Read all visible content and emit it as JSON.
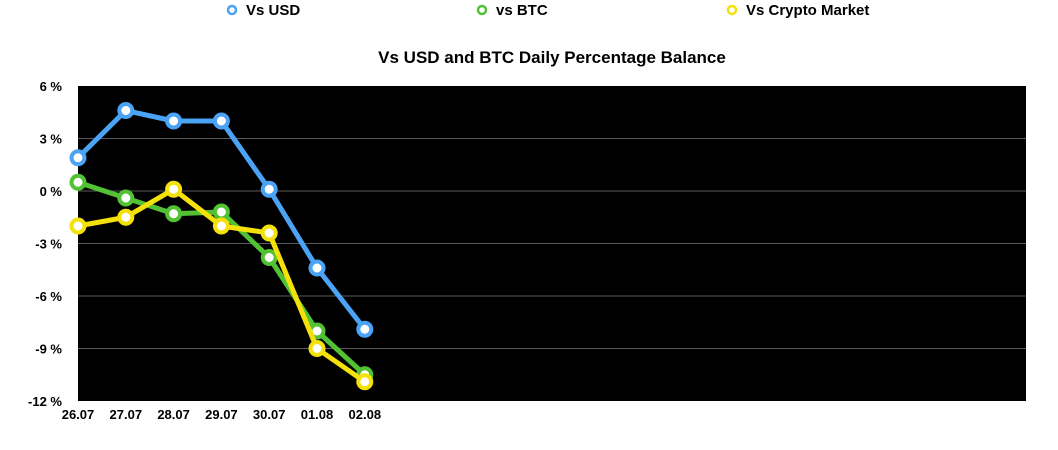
{
  "chart_data": {
    "type": "line",
    "title": "Vs USD and BTC Daily Percentage Balance",
    "xlabel": "",
    "ylabel": "",
    "categories": [
      "26.07",
      "27.07",
      "28.07",
      "29.07",
      "30.07",
      "01.08",
      "02.08"
    ],
    "ylim": [
      -12,
      6
    ],
    "yticks": [
      6,
      3,
      0,
      -3,
      -6,
      -9,
      -12
    ],
    "ytick_labels": [
      "6 %",
      "3 %",
      "0 %",
      "-3 %",
      "-6 %",
      "-9 %",
      "-12 %"
    ],
    "grid": true,
    "background": "#000000",
    "legend_position": "top",
    "series": [
      {
        "name": "Vs USD",
        "color": "#4ba3f5",
        "values": [
          1.9,
          4.6,
          4.0,
          4.0,
          0.1,
          -4.4,
          -7.9
        ]
      },
      {
        "name": "vs BTC",
        "color": "#52c234",
        "values": [
          0.5,
          -0.4,
          -1.3,
          -1.2,
          -3.8,
          -8.0,
          -10.5
        ]
      },
      {
        "name": "Vs Crypto Market",
        "color": "#f5e10a",
        "values": [
          -2.0,
          -1.5,
          0.1,
          -2.0,
          -2.4,
          -9.0,
          -10.9
        ]
      }
    ]
  }
}
